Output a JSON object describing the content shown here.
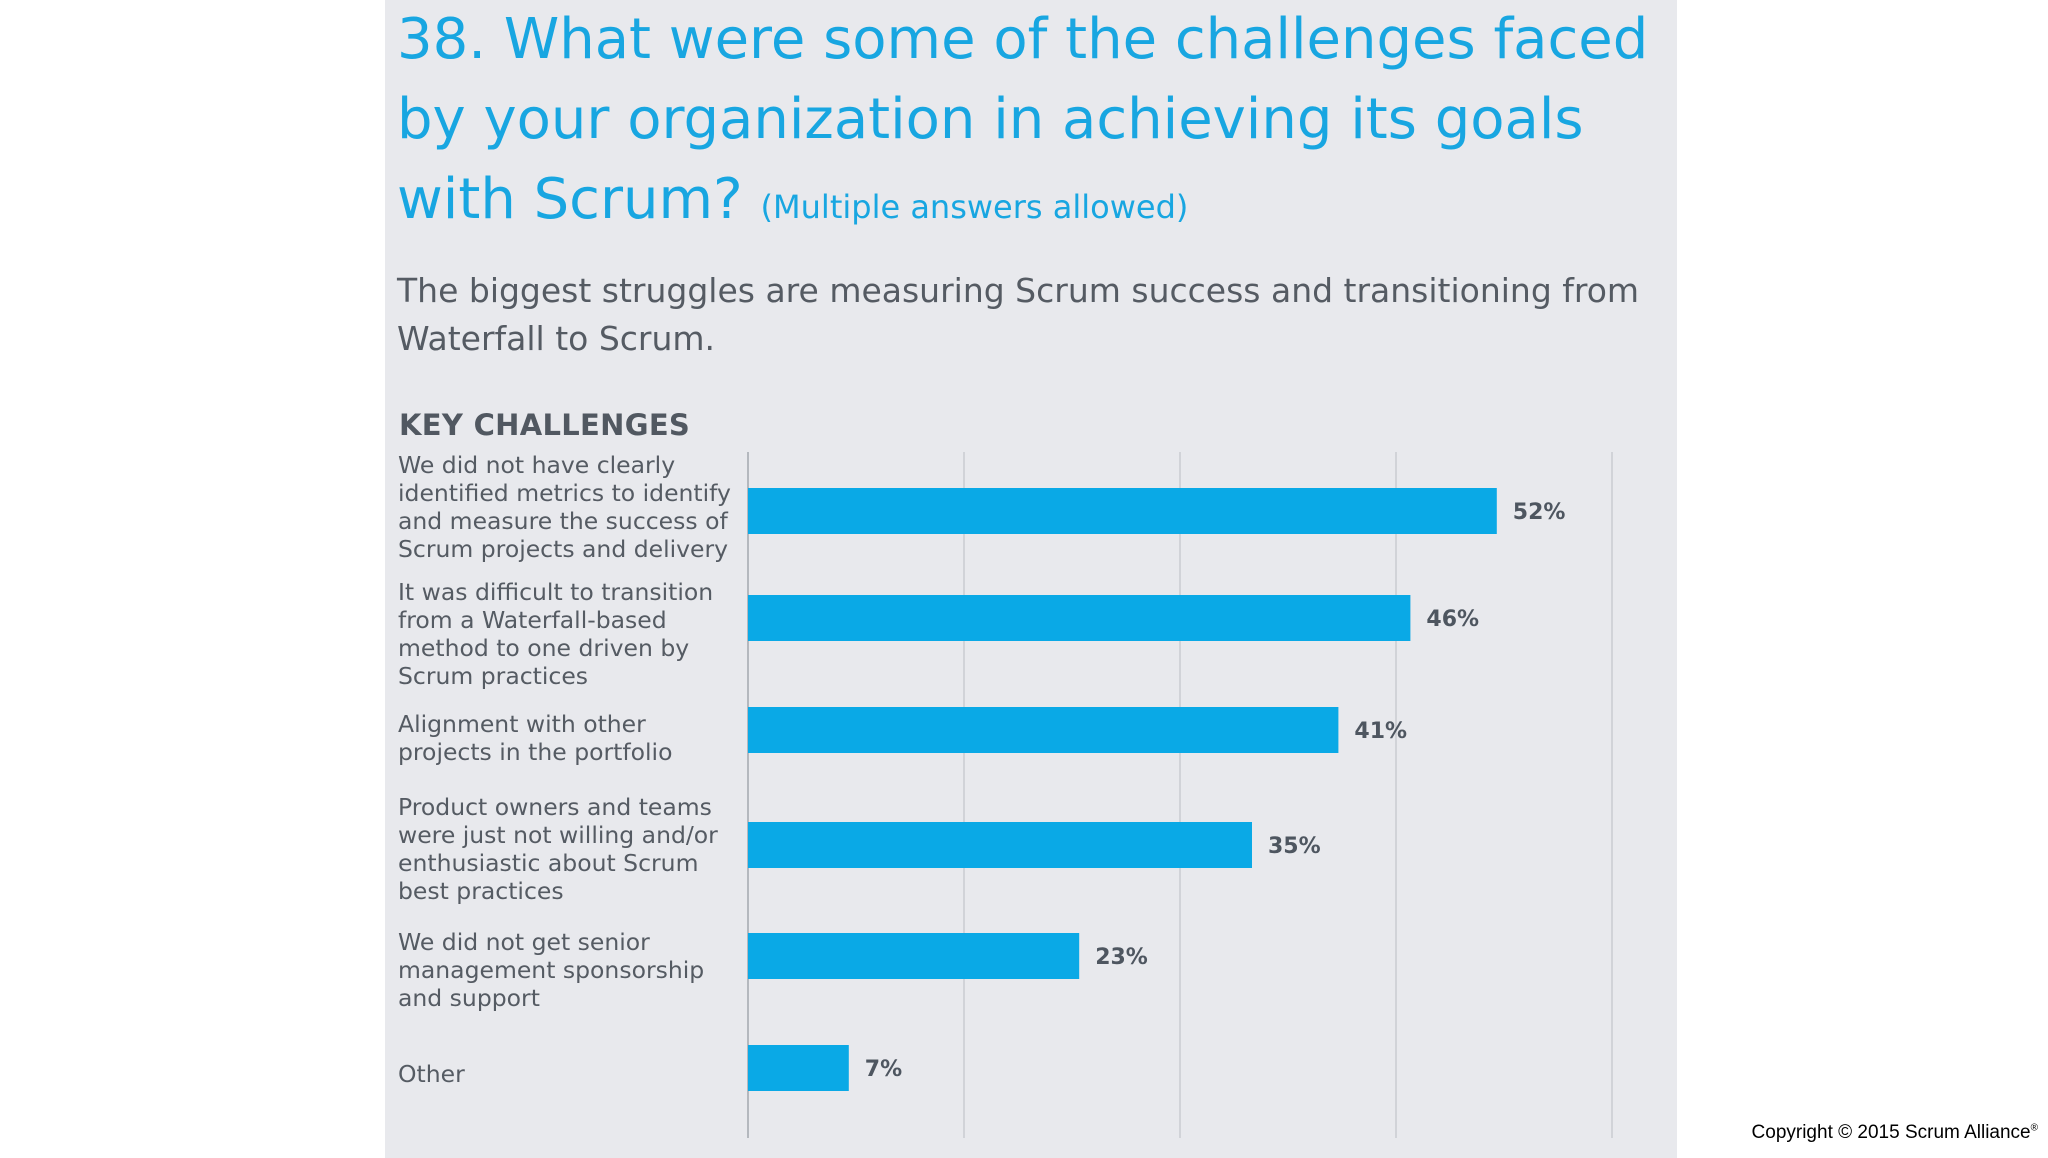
{
  "question": {
    "text": "38. What were some of the challenges faced by your organization in achieving its goals with Scrum?",
    "note": "(Multiple answers allowed)"
  },
  "subtitle": "The biggest struggles are measuring Scrum success and transitioning from Waterfall to Scrum.",
  "copyright": {
    "text": "Copyright © 2015 Scrum Alliance",
    "mark": "®"
  },
  "colors": {
    "accent": "#18a6e1",
    "bar": "#0aa9e6",
    "panel": "#e8e9ed",
    "gridline": "#c9ccd1"
  },
  "chart_data": {
    "type": "bar",
    "orientation": "horizontal",
    "title": "KEY CHALLENGES",
    "categories": [
      "We did not have clearly identified metrics to identify and measure the success of Scrum projects and delivery",
      "It was difficult to transition from a Waterfall-based method to one driven by Scrum practices",
      "Alignment with other projects in the portfolio",
      "Product owners and teams were just not willing and/or enthusiastic about Scrum best practices",
      "We did not get senior management sponsorship and support",
      "Other"
    ],
    "values": [
      52,
      46,
      41,
      35,
      23,
      7
    ],
    "value_labels": [
      "52%",
      "46%",
      "41%",
      "35%",
      "23%",
      "7%"
    ],
    "xlim": [
      0,
      60
    ],
    "grid": true
  }
}
